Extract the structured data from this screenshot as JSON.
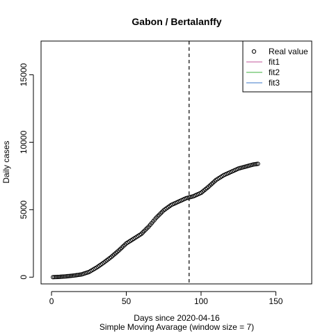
{
  "chart_data": {
    "type": "scatter",
    "title": "Gabon / Bertalanffy",
    "xlabel": "Days since 2020-04-16",
    "xlabel2": "Simple Moving Avarage (window size = 7)",
    "ylabel": "Daily cases",
    "xlim": [
      -7,
      174
    ],
    "ylim": [
      -500,
      17500
    ],
    "xticks": [
      0,
      50,
      100,
      150
    ],
    "yticks": [
      0,
      5000,
      10000,
      15000
    ],
    "vline": 92,
    "legend_position": "top-right",
    "legend": [
      {
        "label": "Real value",
        "kind": "point",
        "color": "#000000"
      },
      {
        "label": "fit1",
        "kind": "line",
        "color": "#c2569b"
      },
      {
        "label": "fit2",
        "kind": "line",
        "color": "#3fb03f"
      },
      {
        "label": "fit3",
        "kind": "line",
        "color": "#3b78c8"
      }
    ],
    "series": [
      {
        "name": "Real value",
        "anchors_x": [
          1,
          5,
          10,
          15,
          20,
          25,
          30,
          35,
          40,
          45,
          50,
          55,
          60,
          65,
          70,
          75,
          80,
          85,
          90,
          95,
          100,
          105,
          110,
          115,
          120,
          125,
          130,
          135,
          138
        ],
        "anchors_y": [
          0,
          20,
          60,
          120,
          200,
          380,
          700,
          1080,
          1500,
          1980,
          2500,
          2850,
          3200,
          3750,
          4400,
          4950,
          5350,
          5600,
          5850,
          6000,
          6250,
          6700,
          7200,
          7550,
          7800,
          8050,
          8200,
          8350,
          8400
        ]
      }
    ]
  }
}
